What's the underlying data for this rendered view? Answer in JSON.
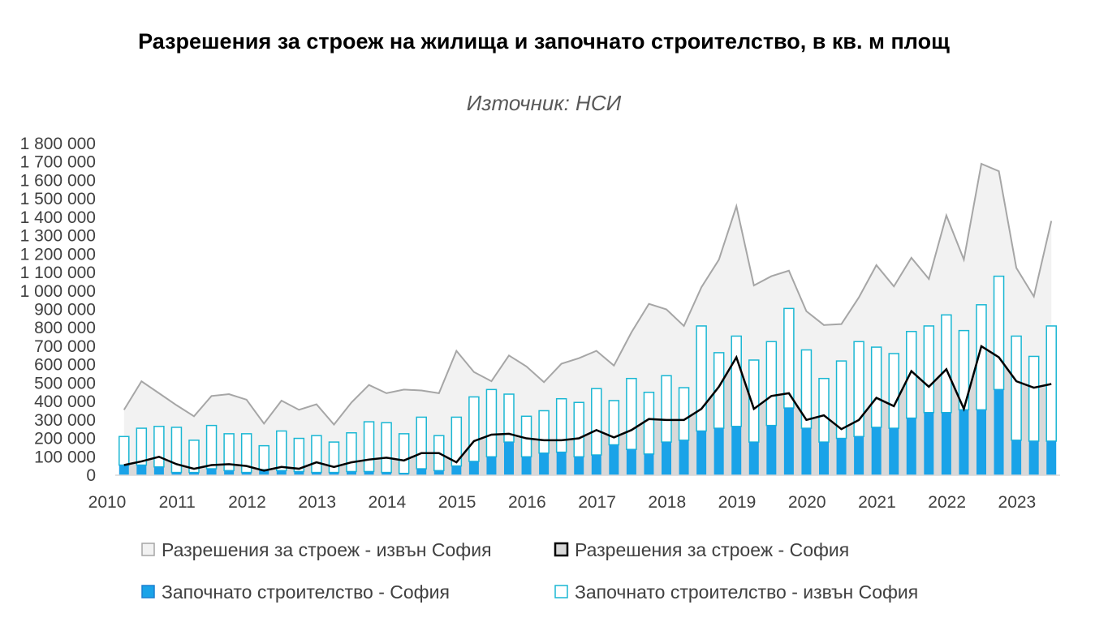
{
  "chart_data": {
    "type": "bar",
    "title": "Разрешения за строеж на жилища и започнато строителство, в кв. м площ",
    "subtitle": "Източник: НСИ",
    "ylim": [
      0,
      1800000
    ],
    "y_ticks": [
      0,
      100000,
      200000,
      300000,
      400000,
      500000,
      600000,
      700000,
      800000,
      900000,
      1000000,
      1100000,
      1200000,
      1300000,
      1400000,
      1500000,
      1600000,
      1700000,
      1800000
    ],
    "y_tick_labels": [
      "0",
      "100 000",
      "200 000",
      "300 000",
      "400 000",
      "500 000",
      "600 000",
      "700 000",
      "800 000",
      "900 000",
      "1 000 000",
      "1 100 000",
      "1 200 000",
      "1 300 000",
      "1 400 000",
      "1 500 000",
      "1 600 000",
      "1 700 000",
      "1 800 000"
    ],
    "x_tick_labels": [
      "2010",
      "2011",
      "2012",
      "2013",
      "2014",
      "2015",
      "2016",
      "2017",
      "2018",
      "2019",
      "2020",
      "2021",
      "2022",
      "2023"
    ],
    "grid": false,
    "legend_position": "bottom",
    "colors": {
      "permits_outside_fill": "#f2f2f2",
      "permits_outside_line": "#a6a6a6",
      "permits_sofia_fill": "#d9d9d9",
      "permits_sofia_line": "#000000",
      "started_sofia": "#1aa3e8",
      "started_outside_border": "#1ab7d3"
    },
    "series": [
      {
        "name": "Разрешения за строеж - извън София",
        "kind": "area",
        "values": [
          355000,
          510000,
          445000,
          380000,
          320000,
          430000,
          440000,
          410000,
          280000,
          405000,
          355000,
          385000,
          275000,
          395000,
          490000,
          445000,
          465000,
          460000,
          445000,
          675000,
          560000,
          510000,
          650000,
          590000,
          505000,
          605000,
          635000,
          675000,
          595000,
          775000,
          930000,
          900000,
          810000,
          1020000,
          1170000,
          1460000,
          1030000,
          1080000,
          1110000,
          890000,
          815000,
          820000,
          965000,
          1140000,
          1025000,
          1180000,
          1065000,
          1410000,
          1170000,
          1690000,
          1650000,
          1125000,
          970000,
          1380000
        ]
      },
      {
        "name": "Разрешения за строеж -  София",
        "kind": "area-line",
        "values": [
          55000,
          75000,
          100000,
          60000,
          35000,
          55000,
          60000,
          50000,
          25000,
          45000,
          35000,
          70000,
          45000,
          70000,
          85000,
          95000,
          80000,
          120000,
          120000,
          70000,
          185000,
          220000,
          225000,
          200000,
          190000,
          190000,
          200000,
          245000,
          205000,
          245000,
          305000,
          300000,
          300000,
          360000,
          480000,
          640000,
          360000,
          430000,
          445000,
          300000,
          325000,
          250000,
          300000,
          420000,
          375000,
          565000,
          480000,
          575000,
          360000,
          700000,
          640000,
          510000,
          475000,
          495000
        ]
      },
      {
        "name": "Започнато строителство - София",
        "kind": "bar",
        "values": [
          55000,
          55000,
          45000,
          15000,
          15000,
          35000,
          25000,
          15000,
          30000,
          25000,
          20000,
          15000,
          15000,
          20000,
          20000,
          15000,
          10000,
          35000,
          25000,
          50000,
          75000,
          100000,
          180000,
          100000,
          120000,
          125000,
          100000,
          110000,
          165000,
          140000,
          115000,
          180000,
          190000,
          240000,
          255000,
          265000,
          180000,
          270000,
          365000,
          255000,
          180000,
          200000,
          210000,
          260000,
          255000,
          310000,
          340000,
          340000,
          355000,
          355000,
          465000,
          190000,
          185000,
          185000
        ]
      },
      {
        "name": "Започнато строителство - извън София",
        "kind": "bar-outline",
        "totals": [
          210000,
          255000,
          265000,
          260000,
          190000,
          270000,
          225000,
          225000,
          160000,
          240000,
          200000,
          215000,
          180000,
          230000,
          290000,
          285000,
          225000,
          315000,
          215000,
          315000,
          425000,
          465000,
          440000,
          320000,
          350000,
          415000,
          395000,
          470000,
          405000,
          525000,
          450000,
          540000,
          475000,
          810000,
          665000,
          755000,
          625000,
          725000,
          905000,
          680000,
          525000,
          620000,
          725000,
          695000,
          660000,
          780000,
          810000,
          870000,
          785000,
          925000,
          1080000,
          755000,
          645000,
          810000
        ]
      }
    ]
  }
}
